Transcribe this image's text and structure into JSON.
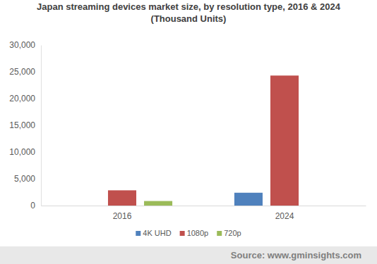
{
  "chart_data": {
    "type": "bar",
    "title": "Japan streaming devices market size, by resolution type, 2016 & 2024",
    "subtitle": "(Thousand Units)",
    "annotations": [
      "Source: www.gminsights.com"
    ],
    "categories": [
      "2016",
      "2024"
    ],
    "series": [
      {
        "name": "4K UHD",
        "color": "#4f81bd",
        "values": [
          0,
          2400
        ]
      },
      {
        "name": "1080p",
        "color": "#c0504d",
        "values": [
          2850,
          24300
        ]
      },
      {
        "name": "720p",
        "color": "#9bbb59",
        "values": [
          850,
          0
        ]
      }
    ],
    "ylim": [
      0,
      30000
    ],
    "yticks": [
      0,
      {
        "value": 5000,
        "label": "5,000"
      },
      {
        "value": 10000,
        "label": "10,000"
      },
      {
        "value": 15000,
        "label": "15,000"
      },
      {
        "value": 20000,
        "label": "20,000"
      },
      {
        "value": 25000,
        "label": "25,000"
      },
      {
        "value": 30000,
        "label": "30,000"
      }
    ],
    "grid": false,
    "legend": "bottom"
  }
}
